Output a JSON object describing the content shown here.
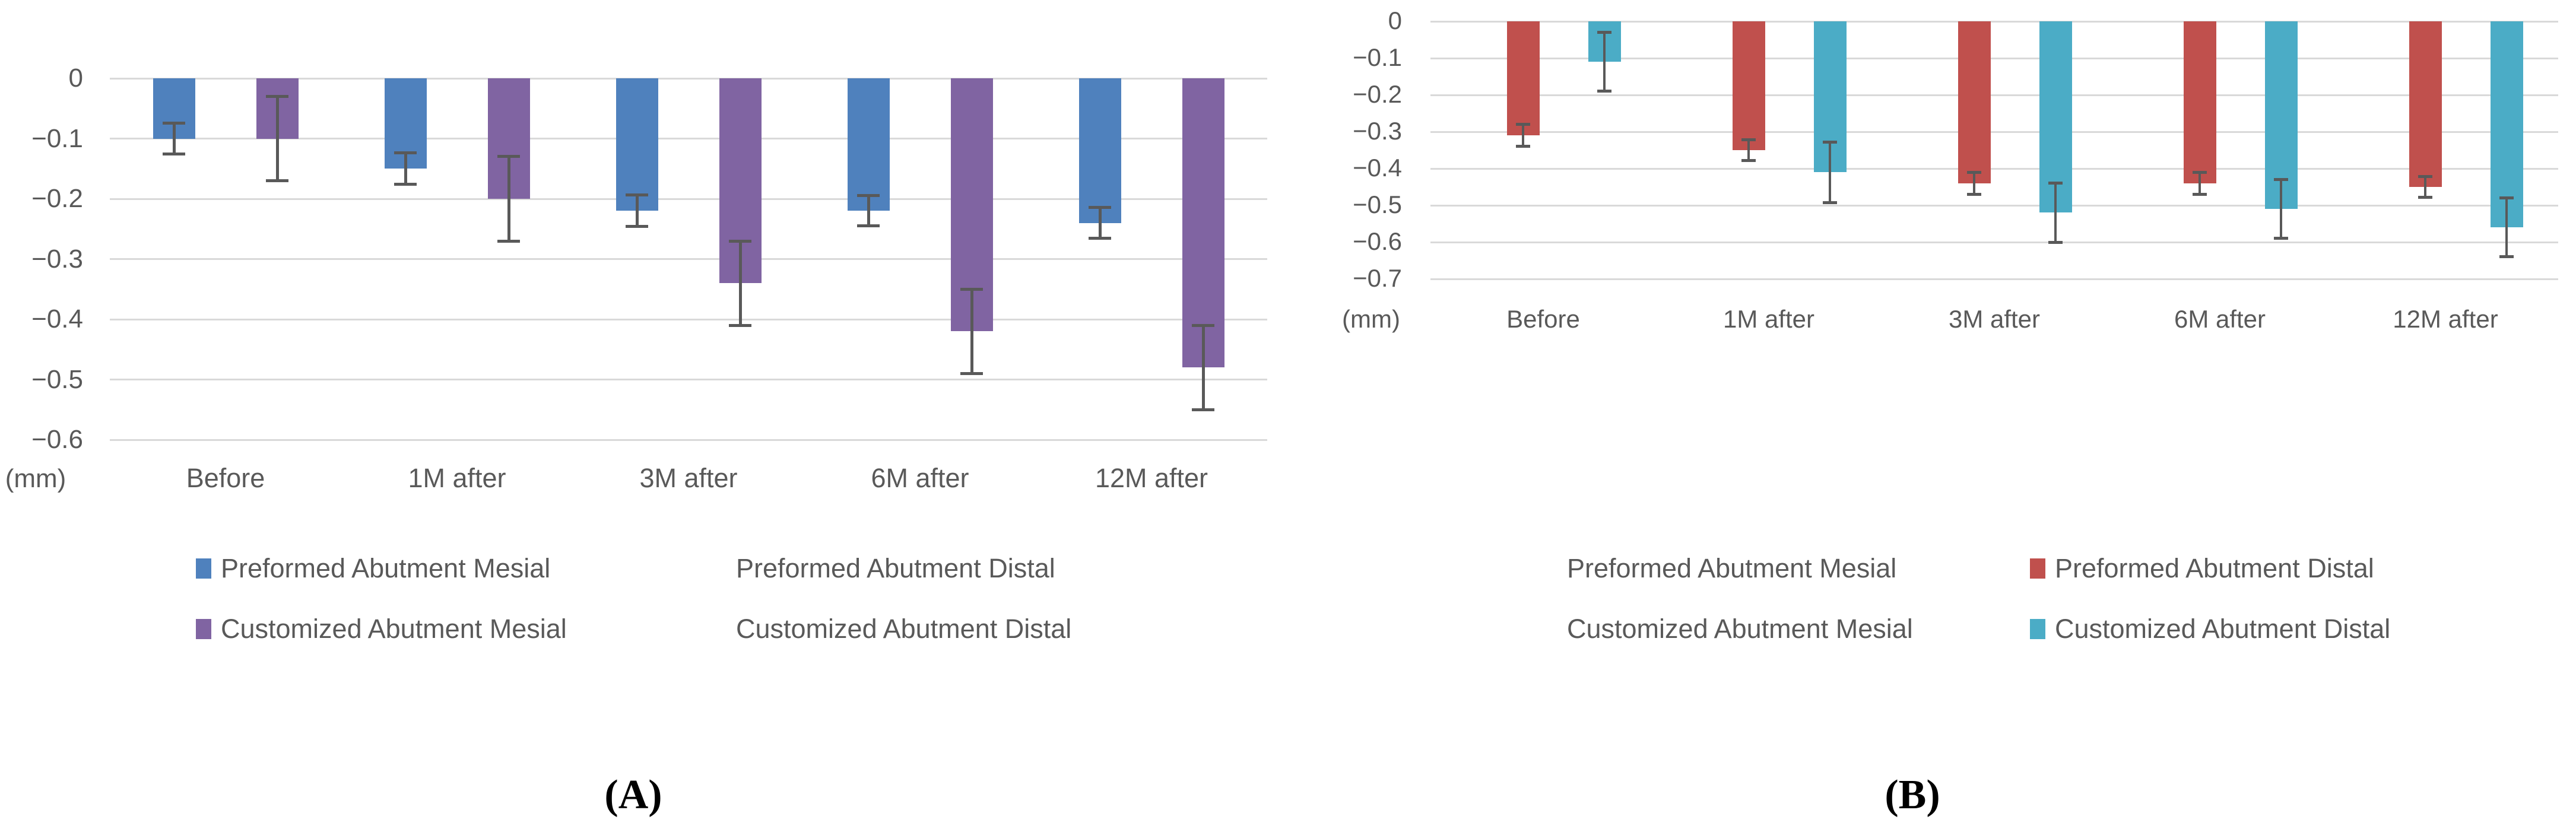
{
  "figure": {
    "panel_a_label": "(A)",
    "panel_b_label": "(B)"
  },
  "chart_data": [
    {
      "id": "A",
      "type": "bar",
      "title": "",
      "unit_label": "(mm)",
      "categories": [
        "Before",
        "1M after",
        "3M after",
        "6M after",
        "12M after"
      ],
      "ylim": [
        0,
        -0.6
      ],
      "ytick_step": 0.1,
      "ytick_labels": [
        "0",
        "−0.1",
        "−0.2",
        "−0.3",
        "−0.4",
        "−0.5",
        "−0.6"
      ],
      "grid": true,
      "series": [
        {
          "name": "Preformed Abutment Mesial",
          "color": "#4F81BD",
          "values": [
            -0.1,
            -0.15,
            -0.22,
            -0.22,
            -0.24
          ],
          "errors": [
            0.026,
            0.026,
            0.026,
            0.025,
            0.026
          ]
        },
        {
          "name": "Customized Abutment Mesial",
          "color": "#8064A2",
          "values": [
            -0.1,
            -0.2,
            -0.34,
            -0.42,
            -0.48
          ],
          "errors": [
            0.07,
            0.07,
            0.07,
            0.07,
            0.07
          ]
        }
      ],
      "legend_position": "below",
      "legend": [
        {
          "label": "Preformed Abutment Mesial",
          "swatch": "#4F81BD"
        },
        {
          "label": "Preformed Abutment Distal",
          "swatch": null
        },
        {
          "label": "Customized Abutment Mesial",
          "swatch": "#8064A2"
        },
        {
          "label": "Customized Abutment Distal",
          "swatch": null
        }
      ]
    },
    {
      "id": "B",
      "type": "bar",
      "title": "",
      "unit_label": "(mm)",
      "categories": [
        "Before",
        "1M after",
        "3M after",
        "6M after",
        "12M after"
      ],
      "ylim": [
        0,
        -0.7
      ],
      "ytick_step": 0.1,
      "ytick_labels": [
        "0",
        "−0.1",
        "−0.2",
        "−0.3",
        "−0.4",
        "−0.5",
        "−0.6",
        "−0.7"
      ],
      "grid": true,
      "series": [
        {
          "name": "Preformed Abutment Distal",
          "color": "#C0504D",
          "values": [
            -0.31,
            -0.35,
            -0.44,
            -0.44,
            -0.45
          ],
          "errors": [
            0.03,
            0.028,
            0.03,
            0.03,
            0.029
          ]
        },
        {
          "name": "Customized Abutment Distal",
          "color": "#4BACC6",
          "values": [
            -0.11,
            -0.41,
            -0.52,
            -0.51,
            -0.56
          ],
          "errors": [
            0.08,
            0.082,
            0.08,
            0.08,
            0.08
          ]
        }
      ],
      "legend_position": "below",
      "legend": [
        {
          "label": "Preformed Abutment Mesial",
          "swatch": null
        },
        {
          "label": "Preformed Abutment Distal",
          "swatch": "#C0504D"
        },
        {
          "label": "Customized Abutment Mesial",
          "swatch": null
        },
        {
          "label": "Customized Abutment Distal",
          "swatch": "#4BACC6"
        }
      ]
    }
  ]
}
